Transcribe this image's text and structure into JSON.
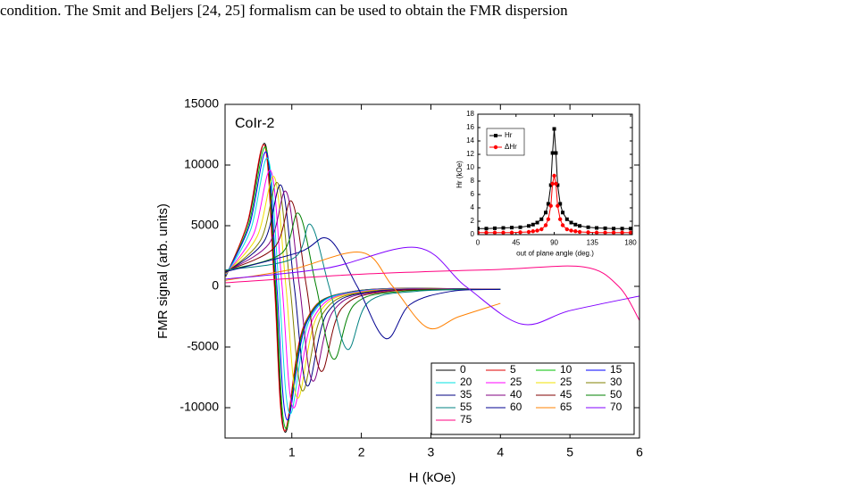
{
  "text": {
    "line": "condition. The Smit and Beljers [24, 25] formalism can be used to obtain the FMR dispersion"
  },
  "chart_data": [
    {
      "type": "line",
      "annotation": "CoIr-2",
      "xlabel": "H (kOe)",
      "ylabel": "FMR signal (arb. units)",
      "xlim": [
        0.04,
        6
      ],
      "ylim": [
        -12500,
        15000
      ],
      "xticks": [
        1,
        2,
        3,
        4,
        5,
        6
      ],
      "yticks": [
        -10000,
        -5000,
        0,
        5000,
        10000,
        15000
      ],
      "series": [
        {
          "name": "0",
          "color": "#000000",
          "x": [
            0.05,
            0.37,
            0.62,
            0.76,
            0.9,
            1.2,
            1.9,
            4.0
          ],
          "values": [
            800,
            5300,
            11700,
            0,
            -12000,
            -3000,
            -400,
            -250
          ]
        },
        {
          "name": "5",
          "color": "#e00000",
          "x": [
            0.05,
            0.36,
            0.61,
            0.75,
            0.89,
            1.19,
            1.89,
            4.0
          ],
          "values": [
            800,
            5200,
            11600,
            0,
            -11900,
            -3000,
            -400,
            -250
          ]
        },
        {
          "name": "10",
          "color": "#00c000",
          "x": [
            0.05,
            0.38,
            0.63,
            0.77,
            0.91,
            1.21,
            1.91,
            4.0
          ],
          "values": [
            850,
            5100,
            11400,
            0,
            -11700,
            -2900,
            -400,
            -250
          ]
        },
        {
          "name": "15",
          "color": "#0000ff",
          "x": [
            0.05,
            0.39,
            0.64,
            0.785,
            0.93,
            1.23,
            1.93,
            4.0
          ],
          "values": [
            900,
            5000,
            11000,
            0,
            -11000,
            -2800,
            -400,
            -250
          ]
        },
        {
          "name": "20",
          "color": "#00e0e0",
          "x": [
            0.05,
            0.41,
            0.66,
            0.815,
            0.97,
            1.27,
            1.97,
            4.0
          ],
          "values": [
            950,
            4700,
            10500,
            0,
            -10500,
            -2600,
            -400,
            -250
          ]
        },
        {
          "name": "25",
          "color": "#ff00ff",
          "x": [
            0.05,
            0.45,
            0.7,
            0.86,
            1.02,
            1.32,
            2.02,
            4.0
          ],
          "values": [
            1000,
            4300,
            9500,
            0,
            -10000,
            -2500,
            -400,
            -250
          ]
        },
        {
          "name": "25",
          "color": "#f0e000",
          "x": [
            0.05,
            0.5,
            0.75,
            0.915,
            1.08,
            1.38,
            2.08,
            4.0
          ],
          "values": [
            1050,
            4100,
            9000,
            0,
            -9200,
            -2300,
            -400,
            -250
          ]
        },
        {
          "name": "30",
          "color": "#808000",
          "x": [
            0.05,
            0.55,
            0.8,
            0.975,
            1.15,
            1.45,
            2.15,
            4.0
          ],
          "values": [
            1100,
            3800,
            8500,
            0,
            -8600,
            -2200,
            -400,
            -250
          ]
        },
        {
          "name": "35",
          "color": "#000080",
          "x": [
            0.05,
            0.6,
            0.85,
            1.035,
            1.22,
            1.52,
            2.22,
            4.0
          ],
          "values": [
            1150,
            3700,
            8300,
            0,
            -8200,
            -2100,
            -400,
            -250
          ]
        },
        {
          "name": "40",
          "color": "#800080",
          "x": [
            0.05,
            0.67,
            0.92,
            1.11,
            1.3,
            1.6,
            2.3,
            4.0
          ],
          "values": [
            1200,
            3500,
            7800,
            0,
            -7800,
            -2000,
            -400,
            -250
          ]
        },
        {
          "name": "45",
          "color": "#800000",
          "x": [
            0.05,
            0.75,
            1.0,
            1.21,
            1.42,
            1.72,
            2.42,
            4.0
          ],
          "values": [
            1250,
            3200,
            7000,
            0,
            -7000,
            -1800,
            -400,
            -250
          ]
        },
        {
          "name": "50",
          "color": "#008000",
          "x": [
            0.05,
            0.85,
            1.1,
            1.35,
            1.6,
            1.9,
            2.6,
            4.0
          ],
          "values": [
            1300,
            2700,
            6000,
            0,
            -6000,
            -1500,
            -400,
            -250
          ]
        },
        {
          "name": "55",
          "color": "#008080",
          "x": [
            0.05,
            1.02,
            1.27,
            1.535,
            1.8,
            2.1,
            2.8,
            4.0
          ],
          "values": [
            1350,
            2300,
            5100,
            0,
            -5200,
            -1300,
            -400,
            -250
          ]
        },
        {
          "name": "60",
          "color": "#000090",
          "x": [
            0.05,
            1.1,
            1.53,
            1.94,
            2.35,
            2.7,
            3.3,
            4.0
          ],
          "values": [
            1200,
            2800,
            3900,
            0,
            -4300,
            -1500,
            -400,
            -250
          ]
        },
        {
          "name": "65",
          "color": "#ff8000",
          "x": [
            0.05,
            1.0,
            2.0,
            2.45,
            2.95,
            3.4,
            4.0
          ],
          "values": [
            500,
            1400,
            2800,
            0,
            -3400,
            -2500,
            -1400
          ]
        },
        {
          "name": "70",
          "color": "#8000ff",
          "x": [
            0.05,
            1.5,
            2.8,
            3.5,
            4.3,
            5.0,
            6.0
          ],
          "values": [
            600,
            1500,
            3200,
            0,
            -3100,
            -2000,
            -800
          ]
        },
        {
          "name": "75",
          "color": "#ff0080",
          "x": [
            0.05,
            2.0,
            4.0,
            5.2,
            5.7,
            6.0
          ],
          "values": [
            300,
            1000,
            1400,
            1600,
            0,
            -2800
          ]
        }
      ]
    },
    {
      "type": "line",
      "xlabel": "out of plane angle (deg.)",
      "ylabel": "Hr (kOe)",
      "xlim": [
        0,
        182
      ],
      "ylim": [
        0,
        18
      ],
      "xticks": [
        0,
        45,
        90,
        135,
        180
      ],
      "yticks": [
        0,
        2,
        4,
        6,
        8,
        10,
        12,
        14,
        16,
        18
      ],
      "x": [
        0,
        10,
        20,
        30,
        40,
        50,
        60,
        65,
        70,
        75,
        80,
        83,
        86,
        88,
        90,
        92,
        94,
        97,
        100,
        105,
        110,
        115,
        120,
        130,
        140,
        150,
        160,
        170,
        180
      ],
      "series": [
        {
          "name": "Hr",
          "color": "#000000",
          "marker": "square",
          "values": [
            0.9,
            0.9,
            0.95,
            1.0,
            1.05,
            1.1,
            1.3,
            1.5,
            1.8,
            2.3,
            3.3,
            4.6,
            7.4,
            12.2,
            15.8,
            12.2,
            7.4,
            4.6,
            3.3,
            2.3,
            1.8,
            1.5,
            1.3,
            1.1,
            1.0,
            0.95,
            0.9,
            0.9,
            0.9
          ]
        },
        {
          "name": "ΔHr",
          "color": "#ff0000",
          "marker": "circle",
          "values": [
            0.3,
            0.3,
            0.3,
            0.3,
            0.3,
            0.35,
            0.4,
            0.5,
            0.6,
            0.8,
            1.4,
            2.3,
            4.3,
            7.6,
            8.8,
            7.6,
            4.3,
            2.3,
            1.4,
            0.8,
            0.6,
            0.5,
            0.4,
            0.35,
            0.3,
            0.3,
            0.3,
            0.3,
            0.3
          ]
        }
      ]
    }
  ]
}
